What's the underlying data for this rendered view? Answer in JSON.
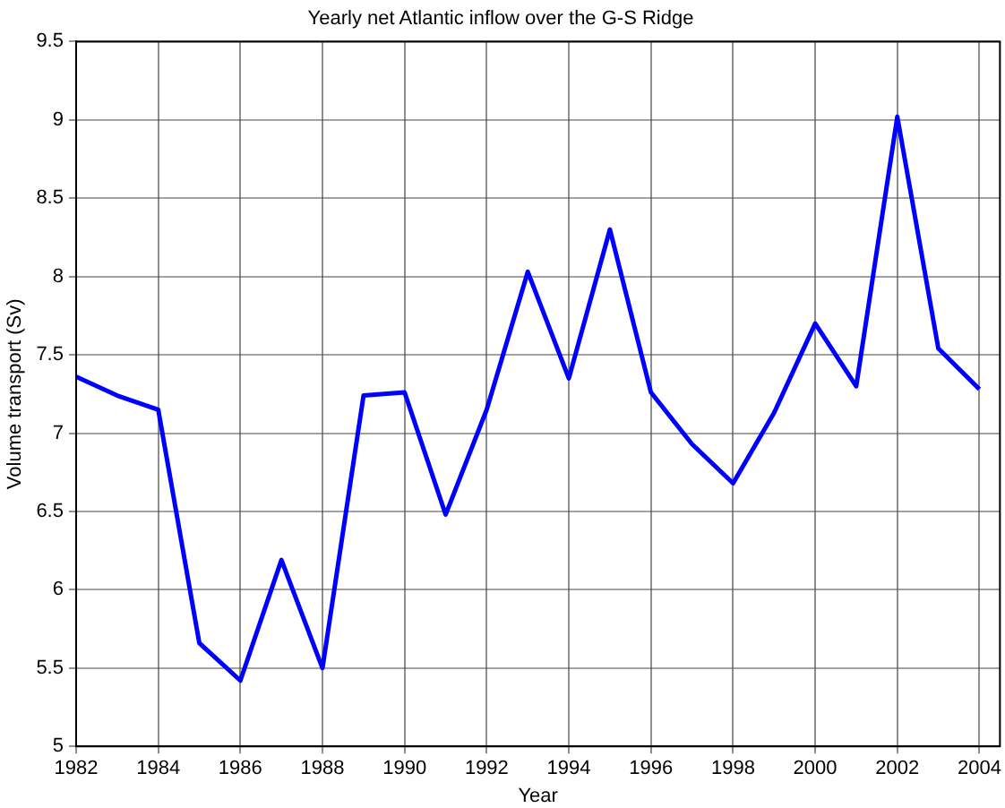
{
  "chart_data": {
    "type": "line",
    "title": "Yearly net Atlantic inflow over the G-S Ridge",
    "xlabel": "Year",
    "ylabel": "Volume transport (Sv)",
    "x": [
      1982,
      1983,
      1984,
      1985,
      1986,
      1987,
      1988,
      1989,
      1990,
      1991,
      1992,
      1993,
      1994,
      1995,
      1996,
      1997,
      1998,
      1999,
      2000,
      2001,
      2002,
      2003,
      2004
    ],
    "series": [
      {
        "color": "#0000ff",
        "values": [
          7.36,
          7.24,
          7.15,
          5.66,
          5.42,
          6.19,
          5.5,
          7.24,
          7.26,
          6.48,
          7.15,
          8.03,
          7.35,
          8.3,
          7.26,
          6.93,
          6.68,
          7.13,
          7.7,
          7.3,
          9.02,
          7.54,
          7.28
        ]
      }
    ],
    "xlim": [
      1982,
      2004.5
    ],
    "xticks": [
      1982,
      1984,
      1986,
      1988,
      1990,
      1992,
      1994,
      1996,
      1998,
      2000,
      2002,
      2004
    ],
    "ylim": [
      5,
      9.5
    ],
    "yticks": [
      5,
      5.5,
      6,
      6.5,
      7,
      7.5,
      8,
      8.5,
      9,
      9.5
    ],
    "grid": true,
    "legend": false,
    "marker": "none",
    "line_style": "solid"
  }
}
